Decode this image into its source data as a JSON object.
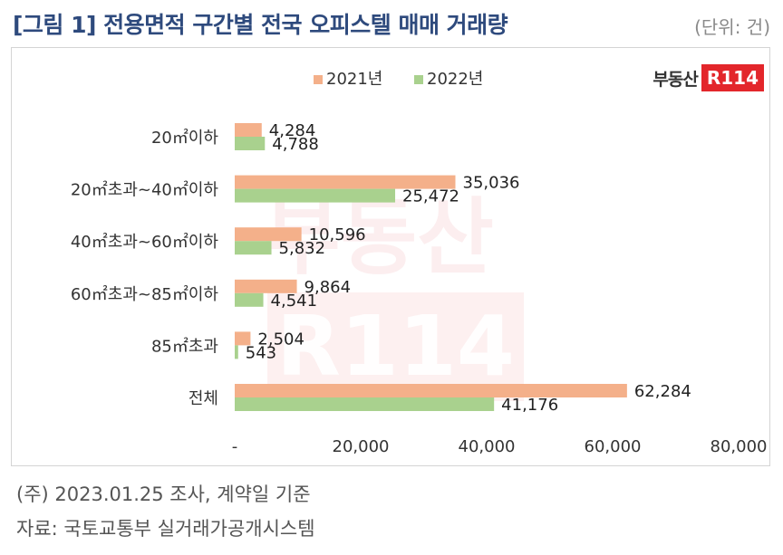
{
  "header": {
    "title": "[그림 1] 전용면적 구간별 전국 오피스텔 매매 거래량",
    "unit": "(단위: 건)"
  },
  "logo": {
    "text": "부동산",
    "mark": "R114"
  },
  "watermark": {
    "text": "부동산",
    "mark": "R114"
  },
  "footer": {
    "note1": "(주) 2023.01.25 조사, 계약일 기준",
    "note2": "자료: 국토교통부 실거래가공개시스템"
  },
  "chart_data": {
    "type": "bar",
    "orientation": "horizontal",
    "categories": [
      "20㎡이하",
      "20㎡초과~40㎡이하",
      "40㎡초과~60㎡이하",
      "60㎡초과~85㎡이하",
      "85㎡초과",
      "전체"
    ],
    "series": [
      {
        "name": "2021년",
        "color": "#f4b08a",
        "values": [
          4284,
          35036,
          10596,
          9864,
          2504,
          62284
        ],
        "labels": [
          "4,284",
          "35,036",
          "10,596",
          "9,864",
          "2,504",
          "62,284"
        ]
      },
      {
        "name": "2022년",
        "color": "#a9d18e",
        "values": [
          4788,
          25472,
          5832,
          4541,
          543,
          41176
        ],
        "labels": [
          "4,788",
          "25,472",
          "5,832",
          "4,541",
          "543",
          "41,176"
        ]
      }
    ],
    "xlim": [
      0,
      80000
    ],
    "xticks": [
      0,
      20000,
      40000,
      60000,
      80000
    ],
    "xtick_labels": [
      "-",
      "20,000",
      "40,000",
      "60,000",
      "80,000"
    ],
    "legend_position": "top-center",
    "grid": false
  }
}
